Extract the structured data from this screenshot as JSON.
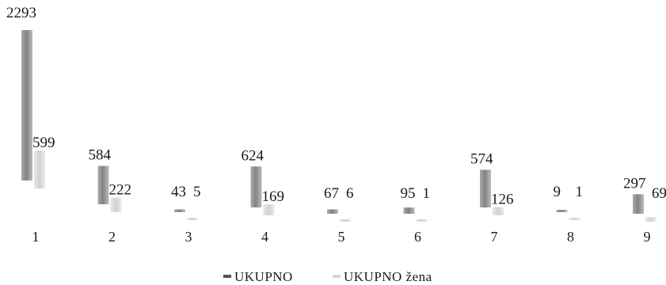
{
  "chart_data": {
    "type": "bar",
    "categories": [
      "1",
      "2",
      "3",
      "4",
      "5",
      "6",
      "7",
      "8",
      "9"
    ],
    "series": [
      {
        "name": "UKUPNO",
        "color": "#8a8a8a",
        "values": [
          2293,
          584,
          43,
          624,
          67,
          95,
          574,
          9,
          297
        ]
      },
      {
        "name": "UKUPNO žena",
        "color": "#d2d2d2",
        "values": [
          599,
          222,
          5,
          169,
          6,
          1,
          126,
          1,
          69
        ]
      }
    ],
    "title": "",
    "xlabel": "",
    "ylabel": "",
    "ylim": [
      0,
      2400
    ],
    "grid": false,
    "legend": "bottom-center"
  }
}
